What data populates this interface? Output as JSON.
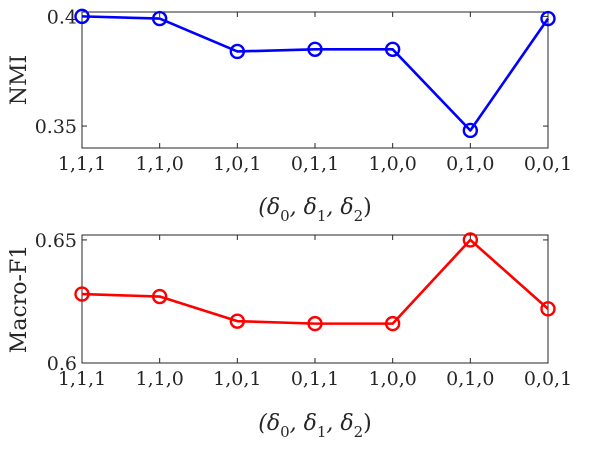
{
  "chart_data": [
    {
      "type": "line",
      "categories": [
        "1,1,1",
        "1,1,0",
        "1,0,1",
        "0,1,1",
        "1,0,0",
        "0,1,0",
        "0,0,1"
      ],
      "series": [
        {
          "values": [
            0.4,
            0.399,
            0.384,
            0.385,
            0.385,
            0.348,
            0.399
          ],
          "color": "#0000ff",
          "marker": "circle"
        }
      ],
      "ylabel": "NMI",
      "xlabel_parts": [
        "(δ",
        "0",
        ", δ",
        "1",
        ", δ",
        "2",
        ")"
      ],
      "yticks": [
        "0.35",
        "0.4"
      ],
      "ylim": [
        0.34,
        0.402
      ],
      "grid": false
    },
    {
      "type": "line",
      "categories": [
        "1,1,1",
        "1,1,0",
        "1,0,1",
        "0,1,1",
        "1,0,0",
        "0,1,0",
        "0,0,1"
      ],
      "series": [
        {
          "values": [
            0.628,
            0.627,
            0.617,
            0.616,
            0.616,
            0.65,
            0.622
          ],
          "color": "#ff0000",
          "marker": "circle"
        }
      ],
      "ylabel": "Macro-F1",
      "xlabel_parts": [
        "(δ",
        "0",
        ", δ",
        "1",
        ", δ",
        "2",
        ")"
      ],
      "yticks": [
        "0.6",
        "0.65"
      ],
      "ylim": [
        0.6,
        0.652
      ],
      "grid": false
    }
  ]
}
